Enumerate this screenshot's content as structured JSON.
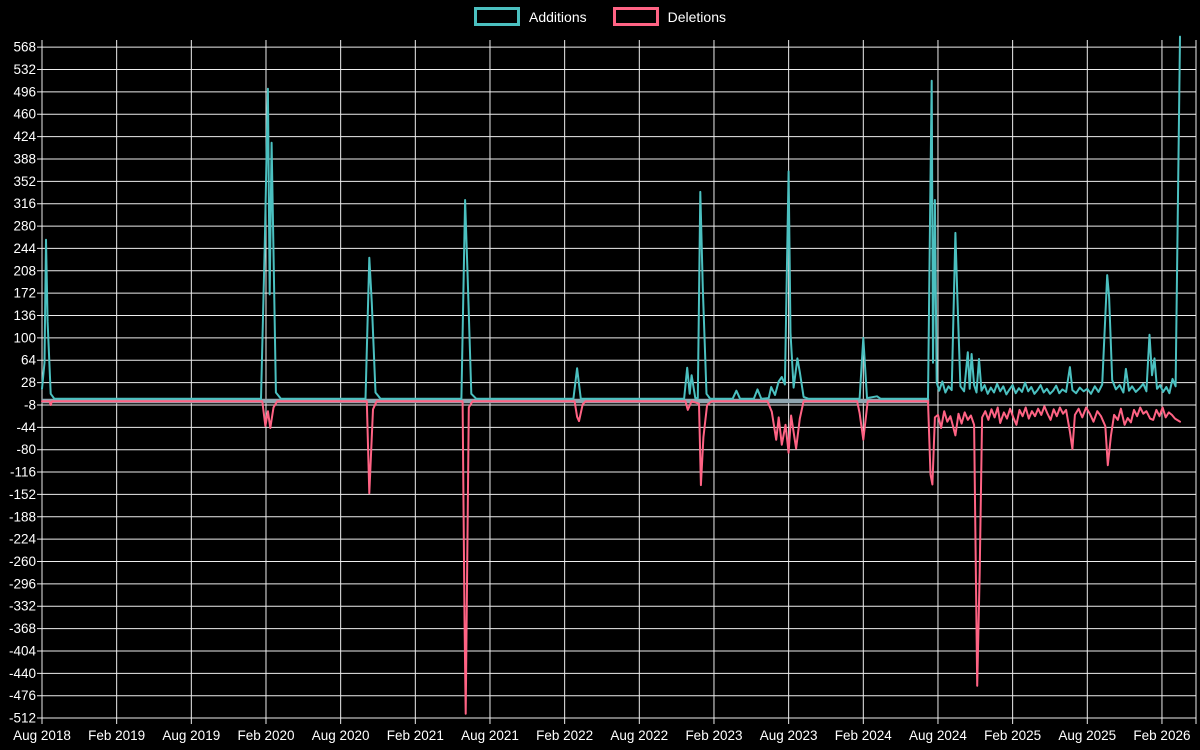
{
  "page": {
    "background_color": "#000000",
    "text_color": "#ffffff",
    "gridline_color": "#ededed"
  },
  "legend": {
    "items": [
      {
        "label": "Additions",
        "color": "#4bc0c0"
      },
      {
        "label": "Deletions",
        "color": "#ff6384"
      }
    ]
  },
  "chart_data": {
    "type": "line",
    "title": "",
    "xlabel": "",
    "ylabel": "",
    "grid": true,
    "legend_position": "top-center",
    "x_axis": {
      "tick_labels": [
        "Aug 2018",
        "Feb 2019",
        "Aug 2019",
        "Feb 2020",
        "Aug 2020",
        "Feb 2021",
        "Aug 2021",
        "Feb 2022",
        "Aug 2022",
        "Feb 2023",
        "Aug 2023",
        "Feb 2024",
        "Aug 2024",
        "Feb 2025",
        "Aug 2025",
        "Feb 2026"
      ],
      "months_between_ticks": 6,
      "x_unit": "months since Aug 2018",
      "xlim": [
        0,
        92.7
      ]
    },
    "y_axis": {
      "tick_labels": [
        "568",
        "532",
        "496",
        "460",
        "424",
        "388",
        "352",
        "316",
        "280",
        "244",
        "208",
        "172",
        "136",
        "100",
        "64",
        "28",
        "-8",
        "-44",
        "-80",
        "-116",
        "-152",
        "-188",
        "-224",
        "-260",
        "-296",
        "-332",
        "-368",
        "-404",
        "-440",
        "-476",
        "-512"
      ],
      "ylim": [
        -512,
        568
      ],
      "tick_step": 36
    },
    "zero_baseline": {
      "color": "#8fa6b0",
      "from_month": 0,
      "to_month": 71.3,
      "value": 0,
      "width": 4.5
    },
    "series": [
      {
        "name": "Additions",
        "color": "#4bc0c0",
        "points": [
          [
            0,
            18
          ],
          [
            0.2,
            60
          ],
          [
            0.32,
            258
          ],
          [
            0.45,
            126
          ],
          [
            0.7,
            10
          ],
          [
            1,
            2
          ],
          [
            17.6,
            2
          ],
          [
            17.9,
            245
          ],
          [
            18.15,
            501
          ],
          [
            18.3,
            170
          ],
          [
            18.45,
            414
          ],
          [
            18.6,
            238
          ],
          [
            18.8,
            12
          ],
          [
            19.2,
            2
          ],
          [
            26,
            2
          ],
          [
            26.3,
            229
          ],
          [
            26.5,
            156
          ],
          [
            26.8,
            12
          ],
          [
            27.2,
            2
          ],
          [
            33.7,
            2
          ],
          [
            34,
            322
          ],
          [
            34.2,
            201
          ],
          [
            34.5,
            10
          ],
          [
            34.9,
            2
          ],
          [
            42.7,
            2
          ],
          [
            43,
            51
          ],
          [
            43.3,
            2
          ],
          [
            51.6,
            2
          ],
          [
            51.85,
            52
          ],
          [
            52.05,
            10
          ],
          [
            52.2,
            40
          ],
          [
            52.5,
            3
          ],
          [
            52.7,
            3
          ],
          [
            52.9,
            335
          ],
          [
            53.1,
            180
          ],
          [
            53.4,
            10
          ],
          [
            53.7,
            2
          ],
          [
            55.5,
            2
          ],
          [
            55.8,
            15
          ],
          [
            56.1,
            2
          ],
          [
            57.2,
            2
          ],
          [
            57.5,
            17
          ],
          [
            57.8,
            2
          ],
          [
            58.4,
            3
          ],
          [
            58.6,
            21
          ],
          [
            58.9,
            8
          ],
          [
            59.2,
            30
          ],
          [
            59.45,
            37
          ],
          [
            59.7,
            25
          ],
          [
            60,
            368
          ],
          [
            60.15,
            108
          ],
          [
            60.4,
            20
          ],
          [
            60.7,
            67
          ],
          [
            60.9,
            45
          ],
          [
            61.2,
            5
          ],
          [
            61.6,
            2
          ],
          [
            65.7,
            2
          ],
          [
            66,
            100
          ],
          [
            66.3,
            3
          ],
          [
            67.1,
            6
          ],
          [
            67.4,
            2
          ],
          [
            71.2,
            2
          ],
          [
            71.4,
            355
          ],
          [
            71.5,
            514
          ],
          [
            71.6,
            60
          ],
          [
            71.75,
            322
          ],
          [
            71.9,
            28
          ],
          [
            72.1,
            15
          ],
          [
            72.35,
            30
          ],
          [
            72.6,
            12
          ],
          [
            72.85,
            22
          ],
          [
            73.1,
            16
          ],
          [
            73.4,
            269
          ],
          [
            73.55,
            169
          ],
          [
            73.8,
            22
          ],
          [
            74.1,
            14
          ],
          [
            74.4,
            77
          ],
          [
            74.55,
            18
          ],
          [
            74.7,
            74
          ],
          [
            74.9,
            24
          ],
          [
            75.1,
            12
          ],
          [
            75.3,
            66
          ],
          [
            75.5,
            15
          ],
          [
            75.75,
            24
          ],
          [
            76,
            10
          ],
          [
            76.25,
            20
          ],
          [
            76.5,
            12
          ],
          [
            76.75,
            26
          ],
          [
            77,
            14
          ],
          [
            77.25,
            22
          ],
          [
            77.5,
            9
          ],
          [
            77.75,
            17
          ],
          [
            78,
            24
          ],
          [
            78.25,
            11
          ],
          [
            78.5,
            19
          ],
          [
            78.75,
            13
          ],
          [
            79,
            28
          ],
          [
            79.25,
            14
          ],
          [
            79.5,
            21
          ],
          [
            79.75,
            10
          ],
          [
            80,
            16
          ],
          [
            80.25,
            24
          ],
          [
            80.5,
            12
          ],
          [
            80.75,
            18
          ],
          [
            81,
            10
          ],
          [
            81.25,
            15
          ],
          [
            81.5,
            23
          ],
          [
            81.75,
            11
          ],
          [
            82,
            17
          ],
          [
            82.3,
            13
          ],
          [
            82.6,
            53
          ],
          [
            82.8,
            16
          ],
          [
            83.1,
            11
          ],
          [
            83.4,
            20
          ],
          [
            83.7,
            14
          ],
          [
            84,
            18
          ],
          [
            84.3,
            10
          ],
          [
            84.6,
            22
          ],
          [
            84.9,
            13
          ],
          [
            85.2,
            25
          ],
          [
            85.6,
            201
          ],
          [
            85.75,
            166
          ],
          [
            86,
            32
          ],
          [
            86.3,
            17
          ],
          [
            86.6,
            24
          ],
          [
            86.9,
            12
          ],
          [
            87.1,
            50
          ],
          [
            87.35,
            15
          ],
          [
            87.6,
            22
          ],
          [
            87.9,
            13
          ],
          [
            88.2,
            19
          ],
          [
            88.5,
            26
          ],
          [
            88.75,
            14
          ],
          [
            89,
            105
          ],
          [
            89.2,
            40
          ],
          [
            89.4,
            67
          ],
          [
            89.6,
            18
          ],
          [
            89.85,
            24
          ],
          [
            90.1,
            13
          ],
          [
            90.35,
            21
          ],
          [
            90.6,
            11
          ],
          [
            90.85,
            34
          ],
          [
            91.1,
            22
          ],
          [
            91.35,
            430
          ],
          [
            91.45,
            585
          ]
        ]
      },
      {
        "name": "Deletions",
        "color": "#ff6384",
        "points": [
          [
            0,
            -2
          ],
          [
            0.6,
            -2
          ],
          [
            0.7,
            -8
          ],
          [
            0.8,
            -2
          ],
          [
            17.7,
            -2
          ],
          [
            17.95,
            -42
          ],
          [
            18.15,
            -18
          ],
          [
            18.35,
            -45
          ],
          [
            18.6,
            -12
          ],
          [
            18.9,
            -2
          ],
          [
            26.1,
            -2
          ],
          [
            26.3,
            -150
          ],
          [
            26.6,
            -15
          ],
          [
            26.9,
            -2
          ],
          [
            33.8,
            -2
          ],
          [
            33.95,
            -350
          ],
          [
            34.05,
            -505
          ],
          [
            34.3,
            -12
          ],
          [
            34.6,
            -2
          ],
          [
            42.8,
            -2
          ],
          [
            43,
            -27
          ],
          [
            43.15,
            -34
          ],
          [
            43.45,
            -7
          ],
          [
            43.7,
            -2
          ],
          [
            51.7,
            -2
          ],
          [
            51.9,
            -16
          ],
          [
            52.2,
            -2
          ],
          [
            52.8,
            -6
          ],
          [
            52.95,
            -137
          ],
          [
            53.15,
            -60
          ],
          [
            53.45,
            -8
          ],
          [
            53.8,
            -2
          ],
          [
            58.3,
            -2
          ],
          [
            58.65,
            -19
          ],
          [
            59,
            -64
          ],
          [
            59.2,
            -28
          ],
          [
            59.45,
            -72
          ],
          [
            59.75,
            -40
          ],
          [
            60,
            -85
          ],
          [
            60.2,
            -25
          ],
          [
            60.6,
            -78
          ],
          [
            60.9,
            -30
          ],
          [
            61.2,
            -2
          ],
          [
            65.5,
            -2
          ],
          [
            65.7,
            -21
          ],
          [
            66,
            -64
          ],
          [
            66.35,
            -2
          ],
          [
            71.2,
            -2
          ],
          [
            71.4,
            -120
          ],
          [
            71.55,
            -136
          ],
          [
            71.75,
            -28
          ],
          [
            72,
            -24
          ],
          [
            72.25,
            -45
          ],
          [
            72.5,
            -18
          ],
          [
            72.75,
            -35
          ],
          [
            73,
            -26
          ],
          [
            73.4,
            -57
          ],
          [
            73.65,
            -22
          ],
          [
            73.9,
            -38
          ],
          [
            74.15,
            -20
          ],
          [
            74.4,
            -32
          ],
          [
            74.65,
            -25
          ],
          [
            74.9,
            -40
          ],
          [
            75.15,
            -460
          ],
          [
            75.35,
            -277
          ],
          [
            75.55,
            -28
          ],
          [
            75.8,
            -18
          ],
          [
            76.05,
            -32
          ],
          [
            76.3,
            -15
          ],
          [
            76.55,
            -28
          ],
          [
            76.8,
            -12
          ],
          [
            77,
            -37
          ],
          [
            77.3,
            -20
          ],
          [
            77.55,
            -30
          ],
          [
            77.8,
            -14
          ],
          [
            78.05,
            -28
          ],
          [
            78.3,
            -40
          ],
          [
            78.55,
            -16
          ],
          [
            78.8,
            -26
          ],
          [
            79.05,
            -12
          ],
          [
            79.3,
            -30
          ],
          [
            79.55,
            -18
          ],
          [
            79.8,
            -26
          ],
          [
            80.05,
            -14
          ],
          [
            80.3,
            -24
          ],
          [
            80.55,
            -10
          ],
          [
            80.8,
            -22
          ],
          [
            81.05,
            -32
          ],
          [
            81.3,
            -15
          ],
          [
            81.55,
            -26
          ],
          [
            81.8,
            -12
          ],
          [
            82.05,
            -22
          ],
          [
            82.3,
            -16
          ],
          [
            82.6,
            -51
          ],
          [
            82.8,
            -79
          ],
          [
            83,
            -24
          ],
          [
            83.3,
            -14
          ],
          [
            83.6,
            -28
          ],
          [
            83.9,
            -12
          ],
          [
            84.2,
            -22
          ],
          [
            84.5,
            -35
          ],
          [
            84.8,
            -18
          ],
          [
            85.1,
            -26
          ],
          [
            85.45,
            -42
          ],
          [
            85.65,
            -105
          ],
          [
            85.9,
            -58
          ],
          [
            86.15,
            -24
          ],
          [
            86.45,
            -32
          ],
          [
            86.7,
            -14
          ],
          [
            87,
            -40
          ],
          [
            87.25,
            -29
          ],
          [
            87.5,
            -36
          ],
          [
            87.75,
            -16
          ],
          [
            88,
            -26
          ],
          [
            88.25,
            -12
          ],
          [
            88.5,
            -22
          ],
          [
            88.75,
            -18
          ],
          [
            89.05,
            -30
          ],
          [
            89.3,
            -32
          ],
          [
            89.55,
            -16
          ],
          [
            89.8,
            -26
          ],
          [
            90.05,
            -12
          ],
          [
            90.3,
            -28
          ],
          [
            90.55,
            -20
          ],
          [
            90.8,
            -24
          ],
          [
            91.05,
            -30
          ],
          [
            91.3,
            -33
          ],
          [
            91.45,
            -35
          ]
        ]
      }
    ]
  }
}
